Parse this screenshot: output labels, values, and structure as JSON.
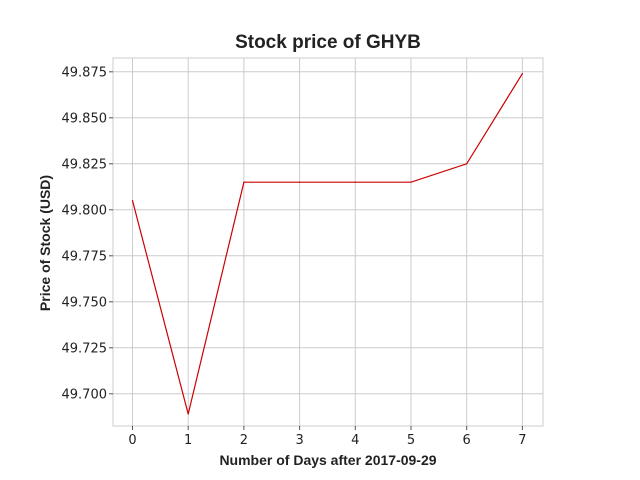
{
  "chart_data": {
    "type": "line",
    "title": "Stock price of GHYB",
    "xlabel": "Number of Days after 2017-09-29",
    "ylabel": "Price of Stock (USD)",
    "x": [
      0,
      1,
      2,
      3,
      4,
      5,
      6,
      7
    ],
    "x_ticks": [
      "0",
      "1",
      "2",
      "3",
      "4",
      "5",
      "6",
      "7"
    ],
    "y_ticks": [
      "49.700",
      "49.725",
      "49.750",
      "49.775",
      "49.800",
      "49.825",
      "49.850",
      "49.875"
    ],
    "y_tick_values": [
      49.7,
      49.725,
      49.75,
      49.775,
      49.8,
      49.825,
      49.85,
      49.875
    ],
    "series": [
      {
        "color": "#cc0000",
        "values": [
          49.805,
          49.689,
          49.815,
          49.815,
          49.815,
          49.815,
          49.825,
          49.874
        ]
      }
    ],
    "xlim": [
      -0.35,
      7.37
    ],
    "ylim": [
      49.6825,
      49.8825
    ],
    "grid": true,
    "legend": "none"
  }
}
